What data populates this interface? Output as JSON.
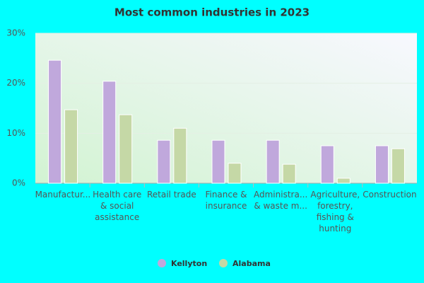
{
  "chart_data": {
    "type": "bar",
    "title": "Most common industries in 2023",
    "categories": [
      "Manufactur...",
      "Health care\n& social\nassistance",
      "Retail trade",
      "Finance &\ninsurance",
      "Administra...\n& waste m...",
      "Agriculture,\nforestry,\nfishing &\nhunting",
      "Construction"
    ],
    "series": [
      {
        "name": "Kellyton",
        "color": "#c0a8dc",
        "values": [
          24.6,
          20.4,
          8.6,
          8.6,
          8.6,
          7.5,
          7.5
        ]
      },
      {
        "name": "Alabama",
        "color": "#c5d8a6",
        "values": [
          14.7,
          13.7,
          11.0,
          4.0,
          3.8,
          1.0,
          6.9
        ]
      }
    ],
    "ylim": [
      0,
      30
    ],
    "yticks": [
      {
        "value": 0,
        "label": "0%"
      },
      {
        "value": 10,
        "label": "10%"
      },
      {
        "value": 20,
        "label": "20%"
      },
      {
        "value": 30,
        "label": "30%"
      }
    ],
    "grid": true,
    "legend": "bottom"
  }
}
